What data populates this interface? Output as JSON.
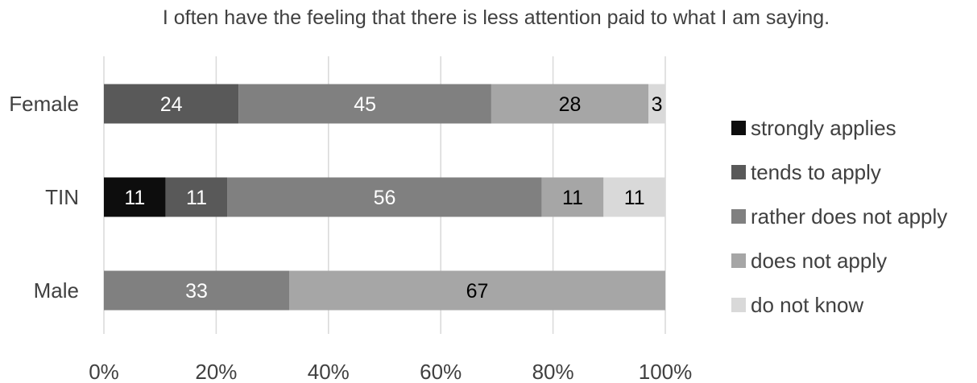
{
  "chart_data": {
    "type": "bar",
    "orientation": "horizontal",
    "stacked": true,
    "title": "I often have the feeling that there is less attention paid to what I am saying.",
    "categories": [
      "Female",
      "TIN",
      "Male"
    ],
    "series": [
      {
        "name": "strongly applies",
        "color": "#0d0d0d",
        "label_color": "#ffffff",
        "values": [
          0,
          11,
          0
        ]
      },
      {
        "name": "tends to apply",
        "color": "#595959",
        "label_color": "#ffffff",
        "values": [
          24,
          11,
          0
        ]
      },
      {
        "name": "rather does not apply",
        "color": "#808080",
        "label_color": "#ffffff",
        "values": [
          45,
          56,
          33
        ]
      },
      {
        "name": "does not apply",
        "color": "#a6a6a6",
        "label_color": "#000000",
        "values": [
          28,
          11,
          67
        ]
      },
      {
        "name": "do not know",
        "color": "#d9d9d9",
        "label_color": "#000000",
        "values": [
          3,
          11,
          0
        ]
      }
    ],
    "xlim": [
      0,
      100
    ],
    "x_ticks": [
      "0%",
      "20%",
      "40%",
      "60%",
      "80%",
      "100%"
    ],
    "grid": true,
    "legend_position": "right"
  }
}
